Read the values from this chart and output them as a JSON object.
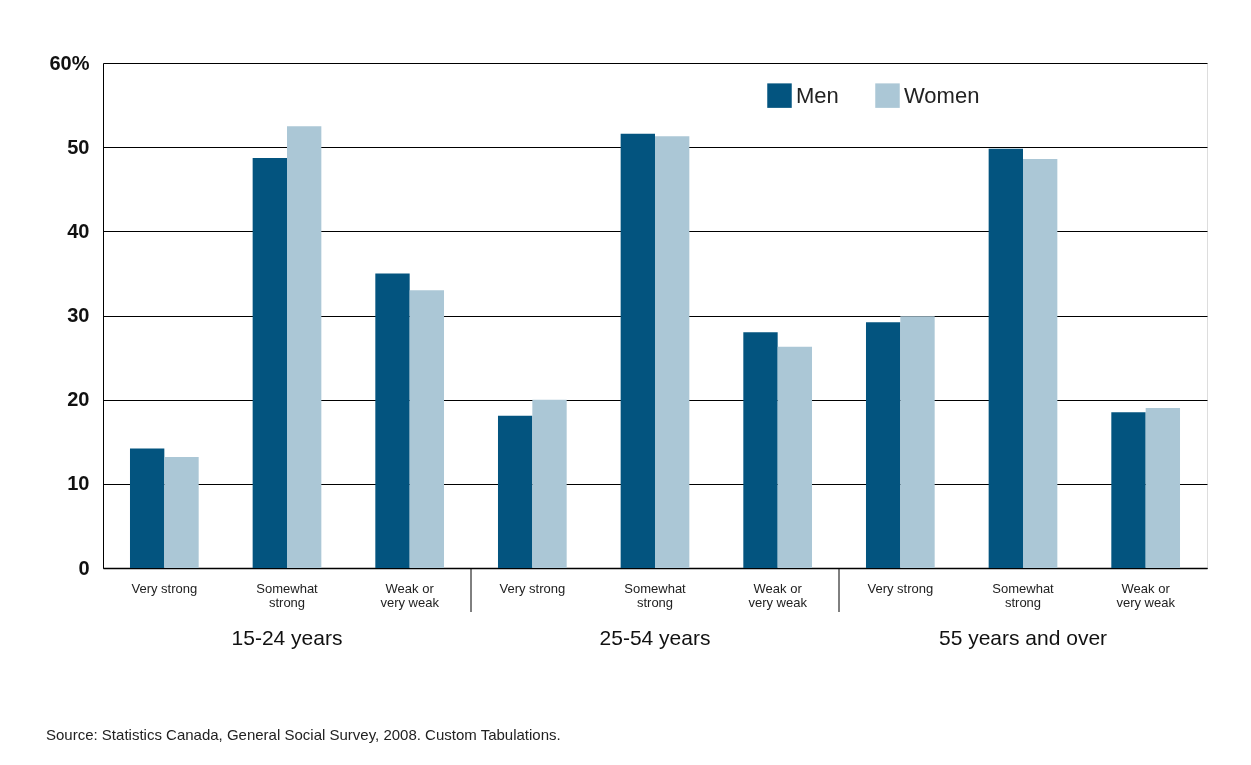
{
  "chart_data": {
    "type": "bar",
    "categories": [
      "Very strong",
      "Somewhat strong",
      "Weak or very weak",
      "Very strong",
      "Somewhat strong",
      "Weak or very weak",
      "Very strong",
      "Somewhat strong",
      "Weak or very weak"
    ],
    "series": [
      {
        "name": "Men",
        "color": "#03547f",
        "values": [
          14.2,
          48.7,
          35.0,
          18.1,
          51.6,
          28.0,
          29.2,
          49.8,
          18.5
        ]
      },
      {
        "name": "Women",
        "color": "#abc7d6",
        "values": [
          13.2,
          52.5,
          33.0,
          20.0,
          51.3,
          26.3,
          29.9,
          48.6,
          19.0
        ]
      }
    ],
    "ylim": [
      0,
      60
    ],
    "yticks": [
      0,
      10,
      20,
      30,
      40,
      50,
      {
        "value": 60,
        "label": "60%"
      }
    ],
    "grid": "y",
    "legend": "top right",
    "annotations": [
      "15-24 years",
      "25-54 years",
      "55 years and over",
      "Source: Statistics Canada, General Social Survey, 2008. Custom Tabulations."
    ]
  }
}
